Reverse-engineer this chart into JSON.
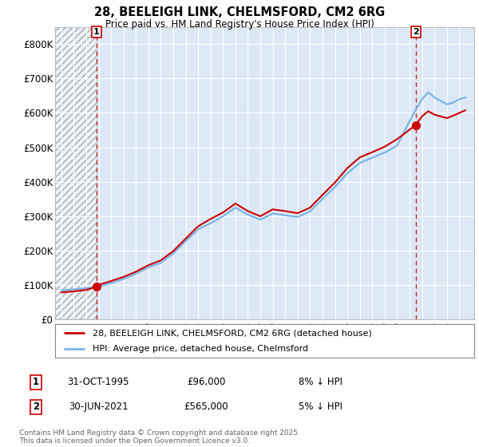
{
  "title_line1": "28, BEELEIGH LINK, CHELMSFORD, CM2 6RG",
  "title_line2": "Price paid vs. HM Land Registry's House Price Index (HPI)",
  "background_color": "#ffffff",
  "plot_bg_color": "#dce8f5",
  "hpi_color": "#7ab4e8",
  "property_color": "#cc0000",
  "sale1_date": "31-OCT-1995",
  "sale1_price": 96000,
  "sale1_label": "8% ↓ HPI",
  "sale2_date": "30-JUN-2021",
  "sale2_price": 565000,
  "sale2_label": "5% ↓ HPI",
  "legend_line1": "28, BEELEIGH LINK, CHELMSFORD, CM2 6RG (detached house)",
  "legend_line2": "HPI: Average price, detached house, Chelmsford",
  "footer": "Contains HM Land Registry data © Crown copyright and database right 2025.\nThis data is licensed under the Open Government Licence v3.0.",
  "yticks": [
    0,
    100000,
    200000,
    300000,
    400000,
    500000,
    600000,
    700000,
    800000
  ],
  "ytick_labels": [
    "£0",
    "£100K",
    "£200K",
    "£300K",
    "£400K",
    "£500K",
    "£600K",
    "£700K",
    "£800K"
  ],
  "ylim": [
    0,
    850000
  ],
  "xlim_start": 1992.5,
  "xlim_end": 2026.2,
  "hpi_years": [
    1993,
    1994,
    1995,
    1996,
    1997,
    1998,
    1999,
    2000,
    2001,
    2002,
    2003,
    2004,
    2005,
    2006,
    2007,
    2008,
    2009,
    2010,
    2011,
    2012,
    2013,
    2014,
    2015,
    2016,
    2017,
    2018,
    2019,
    2020,
    2021,
    2021.5,
    2022,
    2022.5,
    2023,
    2023.5,
    2024,
    2024.5,
    2025,
    2025.5
  ],
  "hpi_values": [
    85000,
    88000,
    91000,
    96000,
    106000,
    118000,
    133000,
    152000,
    165000,
    192000,
    228000,
    262000,
    280000,
    300000,
    325000,
    305000,
    290000,
    308000,
    303000,
    298000,
    314000,
    350000,
    385000,
    425000,
    455000,
    470000,
    485000,
    505000,
    575000,
    610000,
    640000,
    660000,
    645000,
    635000,
    625000,
    630000,
    640000,
    645000
  ],
  "prop_years": [
    1993,
    1994,
    1995,
    1995.83,
    1996,
    1997,
    1998,
    1999,
    2000,
    2001,
    2002,
    2003,
    2004,
    2005,
    2006,
    2007,
    2008,
    2009,
    2010,
    2011,
    2012,
    2013,
    2014,
    2015,
    2016,
    2017,
    2018,
    2019,
    2020,
    2021.5,
    2022,
    2022.5,
    2023,
    2023.5,
    2024,
    2024.5,
    2025,
    2025.5
  ],
  "prop_values": [
    79000,
    82000,
    86000,
    96000,
    101000,
    112000,
    124000,
    139000,
    158000,
    172000,
    199000,
    235000,
    271000,
    292000,
    311000,
    337000,
    315000,
    300000,
    320000,
    315000,
    309000,
    325000,
    362000,
    398000,
    440000,
    471000,
    486000,
    502000,
    524000,
    565000,
    590000,
    605000,
    595000,
    590000,
    585000,
    592000,
    600000,
    608000
  ]
}
